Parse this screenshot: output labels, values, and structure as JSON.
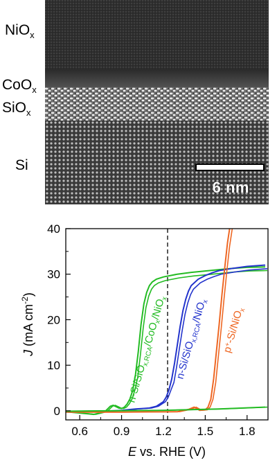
{
  "tem": {
    "layers": [
      {
        "name": "NiO",
        "sub": "x"
      },
      {
        "name": "CoO",
        "sub": "x"
      },
      {
        "name": "SiO",
        "sub": "x"
      },
      {
        "name": "Si",
        "sub": ""
      }
    ],
    "scale_bar_label": "6 nm"
  },
  "chart_data": {
    "type": "line",
    "xlabel": "E vs. RHE (V)",
    "ylabel": "J (mA cm-2)",
    "xlim": [
      0.5,
      1.95
    ],
    "ylim": [
      -2,
      40
    ],
    "xticks": [
      "0.6",
      "0.9",
      "1.2",
      "1.5",
      "1.8"
    ],
    "yticks": [
      "0",
      "10",
      "20",
      "30",
      "40"
    ],
    "vline": 1.23,
    "colors": {
      "green": "#22bb22",
      "blue": "#2233cc",
      "orange": "#ee6622"
    },
    "series": [
      {
        "name": "n-Si/SiOx,RCA/CoOx/NiOx",
        "color": "#22bb22",
        "x": [
          0.5,
          0.6,
          0.7,
          0.78,
          0.82,
          0.84,
          0.86,
          0.88,
          0.9,
          0.92,
          0.94,
          0.96,
          0.98,
          1.0,
          1.02,
          1.04,
          1.06,
          1.08,
          1.1,
          1.12,
          1.15,
          1.2,
          1.3,
          1.4,
          1.5,
          1.6,
          1.7,
          1.8,
          1.93
        ],
        "y": [
          -0.2,
          -0.5,
          -0.8,
          -0.2,
          1.0,
          1.2,
          0.9,
          0.6,
          0.5,
          0.8,
          1.5,
          2.6,
          4.5,
          8.0,
          13.0,
          19.0,
          23.5,
          26.0,
          27.5,
          28.3,
          28.9,
          29.4,
          30.0,
          30.4,
          30.7,
          31.0,
          31.3,
          31.5,
          31.6
        ]
      },
      {
        "name": "n-Si/SiOx,RCA/NiOx",
        "color": "#2233cc",
        "x": [
          0.5,
          0.7,
          0.9,
          1.0,
          1.05,
          1.1,
          1.15,
          1.2,
          1.22,
          1.24,
          1.26,
          1.28,
          1.3,
          1.32,
          1.34,
          1.36,
          1.38,
          1.4,
          1.45,
          1.5,
          1.55,
          1.6,
          1.7,
          1.8,
          1.93
        ],
        "y": [
          -0.3,
          -0.2,
          0.1,
          0.4,
          0.5,
          0.6,
          1.0,
          2.0,
          3.0,
          4.6,
          7.0,
          10.5,
          14.5,
          18.5,
          22.0,
          24.5,
          26.3,
          27.5,
          28.9,
          29.7,
          30.3,
          30.8,
          31.3,
          31.7,
          32.0
        ]
      },
      {
        "name": "p+-Si/NiOx",
        "color": "#ee6622",
        "x": [
          0.5,
          0.9,
          1.3,
          1.38,
          1.42,
          1.46,
          1.5,
          1.52,
          1.54,
          1.56,
          1.58,
          1.6,
          1.62,
          1.64,
          1.66,
          1.68
        ],
        "y": [
          -0.3,
          -0.3,
          -0.2,
          0.3,
          0.8,
          0.1,
          0.2,
          0.8,
          2.5,
          7.0,
          13.0,
          19.0,
          25.5,
          31.5,
          37.0,
          41.0
        ]
      },
      {
        "name": "",
        "color": "#22bb22",
        "x": [
          0.5,
          0.8,
          1.2,
          1.6,
          1.93
        ],
        "y": [
          -0.1,
          0.0,
          0.1,
          0.4,
          0.8
        ]
      }
    ],
    "annotations": [
      {
        "text": "n-Si/SiOx,RCA/CoOx/NiOx",
        "color": "#22bb22"
      },
      {
        "text": "n-Si/SiOx,RCA/NiOx",
        "color": "#2233cc"
      },
      {
        "text": "p+-Si/NiOx",
        "color": "#ee6622"
      }
    ]
  }
}
